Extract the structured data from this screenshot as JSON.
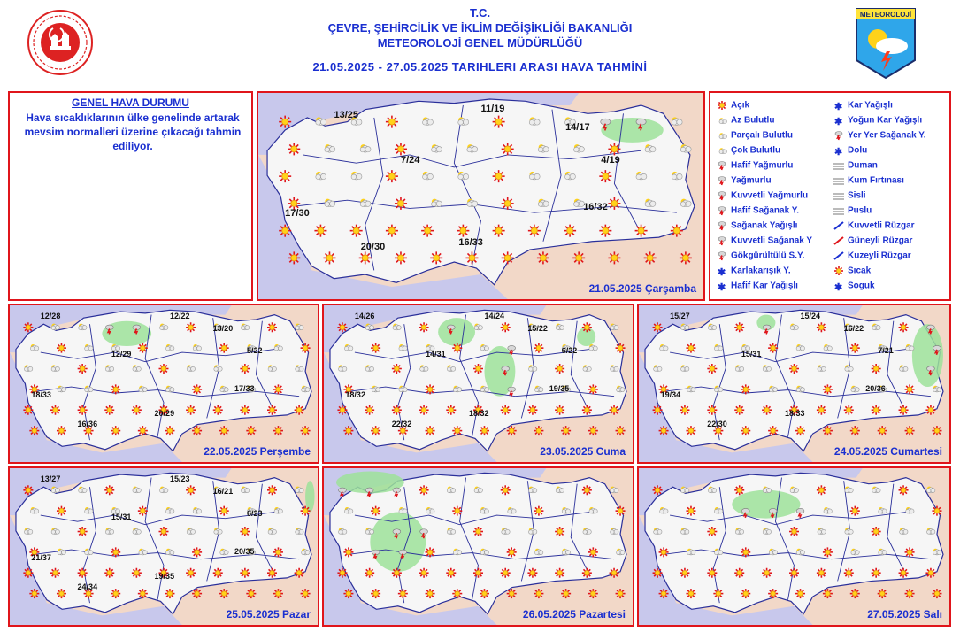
{
  "header": {
    "line1": "T.C.",
    "line2": "ÇEVRE, ŞEHİRCİLİK VE İKLİM DEĞİŞİKLİĞİ BAKANLIĞI",
    "line3": "METEOROLOJİ GENEL MÜDÜRLÜĞÜ",
    "dates": "21.05.2025 - 27.05.2025 TARIHLERI ARASI HAVA TAHMİNİ"
  },
  "logo_right_text": "METEOROLOJİ",
  "general": {
    "title": "GENEL HAVA DURUMU",
    "text": "Hava sıcaklıklarının ülke genelinde artarak mevsim normalleri üzerine çıkacağı tahmin ediliyor."
  },
  "legend": {
    "col1": [
      "Açık",
      "Az Bulutlu",
      "Parçalı Bulutlu",
      "Çok Bulutlu",
      "Hafif Yağmurlu",
      "Yağmurlu",
      "Kuvvetli Yağmurlu",
      "Hafif Sağanak Y.",
      "Sağanak Yağışlı",
      "Kuvvetli Sağanak Y",
      "Gökgürültülü S.Y.",
      "Karlakarışık Y.",
      "Hafif Kar Yağışlı"
    ],
    "col2": [
      "Kar Yağışlı",
      "Yoğun Kar Yağışlı",
      "Yer Yer Sağanak Y.",
      "Dolu",
      "Duman",
      "Kum Fırtınası",
      "Sisli",
      "Puslu",
      "Kuvvetli Rüzgar",
      "Güneyli Rüzgar",
      "Kuzeyli Rüzgar",
      "Sıcak",
      "Soguk"
    ]
  },
  "days": [
    {
      "date": "21.05.2025 Çarşamba",
      "temps": [
        "13/25",
        "11/19",
        "14/17",
        "4/19",
        "7/24",
        "17/30",
        "16/32",
        "20/30",
        "16/33"
      ]
    },
    {
      "date": "22.05.2025 Perşembe",
      "temps": [
        "12/28",
        "12/22",
        "13/20",
        "5/22",
        "12/29",
        "18/33",
        "17/33",
        "16/36",
        "20/29"
      ]
    },
    {
      "date": "23.05.2025 Cuma",
      "temps": [
        "14/26",
        "14/24",
        "15/22",
        "6/22",
        "14/31",
        "18/32",
        "19/35",
        "22/32",
        "18/32"
      ]
    },
    {
      "date": "24.05.2025 Cumartesi",
      "temps": [
        "15/27",
        "15/24",
        "16/22",
        "7/21",
        "15/31",
        "19/34",
        "20/36",
        "22/30",
        "18/33"
      ]
    },
    {
      "date": "25.05.2025 Pazar",
      "temps": [
        "13/27",
        "15/23",
        "16/21",
        "6/23",
        "15/31",
        "21/37",
        "20/35",
        "24/34",
        "19/35"
      ]
    },
    {
      "date": "26.05.2025 Pazartesi",
      "temps": []
    },
    {
      "date": "27.05.2025 Salı",
      "temps": []
    }
  ],
  "colors": {
    "border": "#e0151b",
    "text": "#1a2fd0",
    "sea": "#c8c8ec",
    "land": "#f6f6f6",
    "outside": "#f2d8c8",
    "rain_area": "#9ee29a"
  }
}
